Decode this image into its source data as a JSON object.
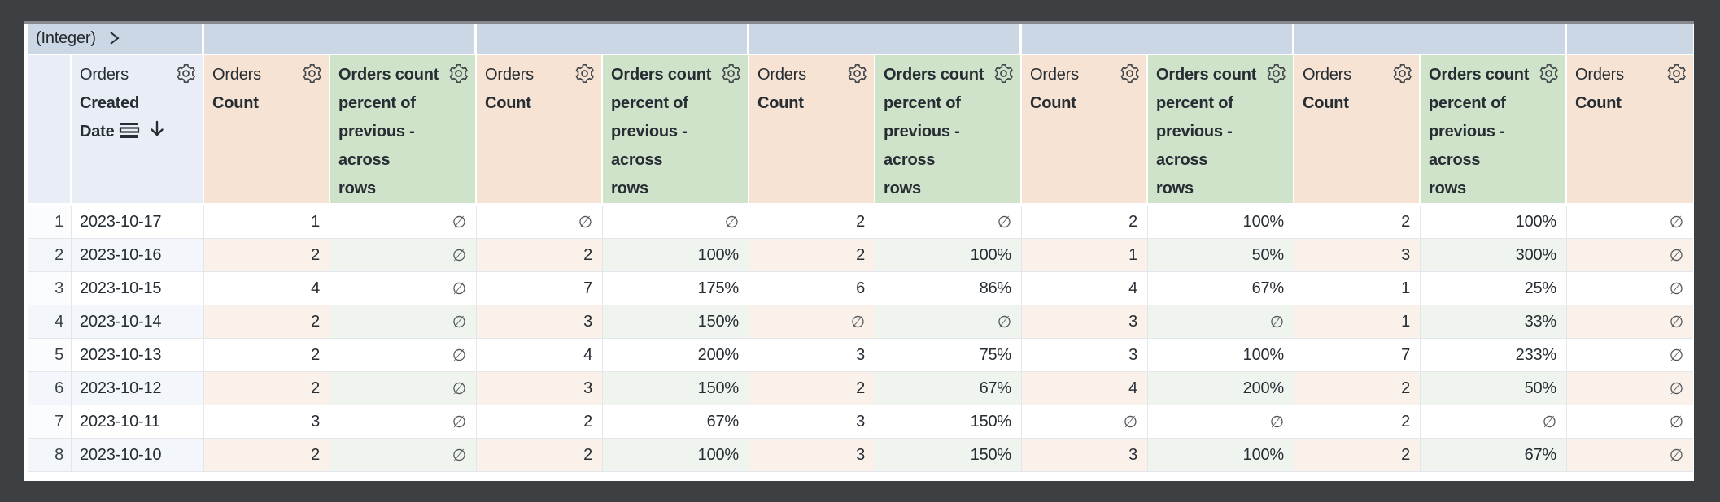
{
  "pivot_band": {
    "field_type_label": "(Integer)",
    "cells": [
      {
        "label": "(Integer)",
        "span": 2,
        "chevron": true
      },
      {
        "label": "",
        "span": 2
      },
      {
        "label": "",
        "span": 2
      },
      {
        "label": "",
        "span": 2
      },
      {
        "label": "",
        "span": 2
      },
      {
        "label": "",
        "span": 2
      },
      {
        "label": "",
        "span": 1
      }
    ]
  },
  "headers": {
    "dimension": {
      "view_label": "Orders",
      "field_lines": [
        "Created",
        "Date"
      ],
      "full_label": "Orders Created Date",
      "sorted_descending": true
    },
    "count": {
      "view_label": "Orders",
      "field_label": "Count",
      "full_label": "Orders Count"
    },
    "calc": {
      "full_label": "Orders count percent of previous - across rows",
      "label_lines": [
        "Orders count",
        "percent of",
        "previous -",
        "across",
        "rows"
      ]
    }
  },
  "columns": {
    "measure_pattern": [
      "count",
      "calc",
      "count",
      "calc",
      "count",
      "calc",
      "count",
      "calc",
      "count",
      "calc",
      "count"
    ]
  },
  "null_symbol": "∅",
  "rows": [
    {
      "n": "1",
      "date": "2023-10-17",
      "values": [
        "1",
        "∅",
        "∅",
        "∅",
        "2",
        "∅",
        "2",
        "100%",
        "2",
        "100%",
        "∅"
      ]
    },
    {
      "n": "2",
      "date": "2023-10-16",
      "values": [
        "2",
        "∅",
        "2",
        "100%",
        "2",
        "100%",
        "1",
        "50%",
        "3",
        "300%",
        "∅"
      ]
    },
    {
      "n": "3",
      "date": "2023-10-15",
      "values": [
        "4",
        "∅",
        "7",
        "175%",
        "6",
        "86%",
        "4",
        "67%",
        "1",
        "25%",
        "∅"
      ]
    },
    {
      "n": "4",
      "date": "2023-10-14",
      "values": [
        "2",
        "∅",
        "3",
        "150%",
        "∅",
        "∅",
        "3",
        "∅",
        "1",
        "33%",
        "∅"
      ]
    },
    {
      "n": "5",
      "date": "2023-10-13",
      "values": [
        "2",
        "∅",
        "4",
        "200%",
        "3",
        "75%",
        "3",
        "100%",
        "7",
        "233%",
        "∅"
      ]
    },
    {
      "n": "6",
      "date": "2023-10-12",
      "values": [
        "2",
        "∅",
        "3",
        "150%",
        "2",
        "67%",
        "4",
        "200%",
        "2",
        "50%",
        "∅"
      ]
    },
    {
      "n": "7",
      "date": "2023-10-11",
      "values": [
        "3",
        "∅",
        "2",
        "67%",
        "3",
        "150%",
        "∅",
        "∅",
        "2",
        "∅",
        "∅"
      ]
    },
    {
      "n": "8",
      "date": "2023-10-10",
      "values": [
        "2",
        "∅",
        "2",
        "100%",
        "3",
        "150%",
        "3",
        "100%",
        "2",
        "67%",
        "∅"
      ]
    }
  ],
  "colors": {
    "frame": "#3c4043",
    "pivot_band": "#ccd7e6",
    "dimension_header": "#e9eef6",
    "count_header": "#f6e3d3",
    "calc_header": "#cfe2ca",
    "even_row_dim": "#f3f6fa",
    "even_row_count": "#f9f1ea",
    "even_row_calc": "#eff5ee",
    "text": "#262d33"
  }
}
